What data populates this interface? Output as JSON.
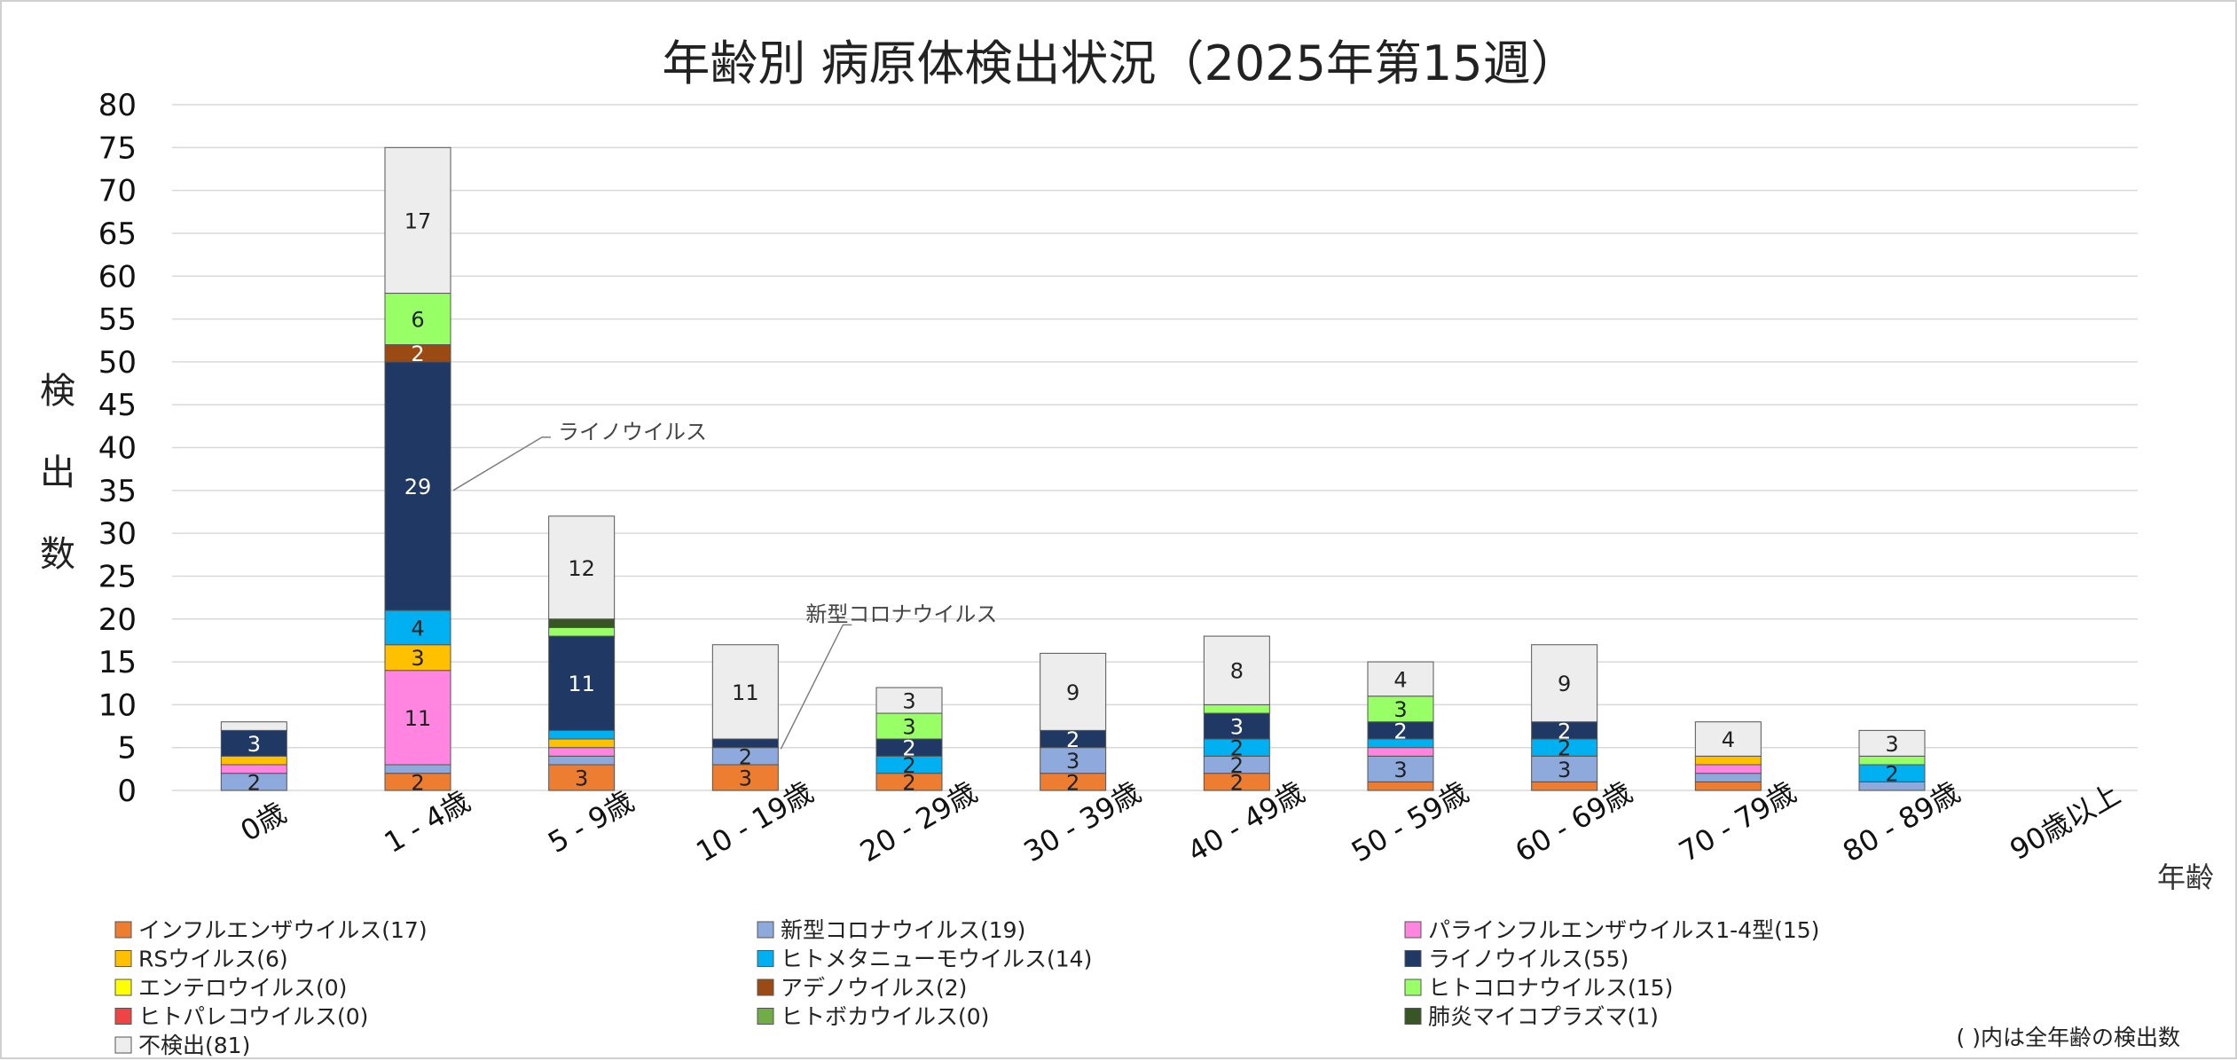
{
  "chart_data": {
    "type": "bar",
    "stacked": true,
    "title": "年齢別 病原体検出状況（2025年第15週）",
    "ylabel": "検出数",
    "xlabel": "年齢",
    "ylim": [
      0,
      80
    ],
    "yticks": [
      0,
      5,
      10,
      15,
      20,
      25,
      30,
      35,
      40,
      45,
      50,
      55,
      60,
      65,
      70,
      75,
      80
    ],
    "grid": true,
    "legend_position": "bottom",
    "categories": [
      "0歳",
      "1 - 4歳",
      "5 - 9歳",
      "10 - 19歳",
      "20 - 29歳",
      "30 - 39歳",
      "40 - 49歳",
      "50 - 59歳",
      "60 - 69歳",
      "70 - 79歳",
      "80 - 89歳",
      "90歳以上"
    ],
    "series": [
      {
        "name": "インフルエンザウイルス(17)",
        "color": "#ED7D31",
        "values": [
          0,
          2,
          3,
          3,
          2,
          2,
          2,
          1,
          1,
          1,
          0,
          0
        ],
        "labels": [
          "",
          "2",
          "3",
          "3",
          "2",
          "2",
          "2",
          "",
          "",
          "",
          "",
          ""
        ]
      },
      {
        "name": "新型コロナウイルス(19)",
        "color": "#8EA9DB",
        "values": [
          2,
          1,
          1,
          2,
          0,
          3,
          2,
          3,
          3,
          1,
          1,
          0
        ],
        "labels": [
          "2",
          "",
          "",
          "2",
          "",
          "3",
          "2",
          "3",
          "3",
          "",
          "",
          ""
        ]
      },
      {
        "name": "パラインフルエンザウイルス1-4型(15)",
        "color": "#FF85E0",
        "values": [
          1,
          11,
          1,
          0,
          0,
          0,
          0,
          1,
          0,
          1,
          0,
          0
        ],
        "labels": [
          "",
          "11",
          "",
          "",
          "",
          "",
          "",
          "",
          "",
          "",
          "",
          ""
        ]
      },
      {
        "name": "RSウイルス(6)",
        "color": "#FFC000",
        "values": [
          1,
          3,
          1,
          0,
          0,
          0,
          0,
          0,
          0,
          1,
          0,
          0
        ],
        "labels": [
          "",
          "3",
          "",
          "",
          "",
          "",
          "",
          "",
          "",
          "",
          "",
          ""
        ]
      },
      {
        "name": "ヒトメタニューモウイルス(14)",
        "color": "#00B0F0",
        "values": [
          0,
          4,
          1,
          0,
          2,
          0,
          2,
          1,
          2,
          0,
          2,
          0
        ],
        "labels": [
          "",
          "4",
          "",
          "",
          "2",
          "",
          "2",
          "",
          "2",
          "",
          "2",
          ""
        ]
      },
      {
        "name": "ライノウイルス(55)",
        "color": "#203864",
        "values": [
          3,
          29,
          11,
          1,
          2,
          2,
          3,
          2,
          2,
          0,
          0,
          0
        ],
        "labels": [
          "3",
          "29",
          "11",
          "",
          "2",
          "2",
          "3",
          "2",
          "2",
          "",
          "",
          ""
        ]
      },
      {
        "name": "エンテロウイルス(0)",
        "color": "#FFFF00",
        "values": [
          0,
          0,
          0,
          0,
          0,
          0,
          0,
          0,
          0,
          0,
          0,
          0
        ],
        "labels": [
          "",
          "",
          "",
          "",
          "",
          "",
          "",
          "",
          "",
          "",
          "",
          ""
        ]
      },
      {
        "name": "アデノウイルス(2)",
        "color": "#9C4A13",
        "values": [
          0,
          2,
          0,
          0,
          0,
          0,
          0,
          0,
          0,
          0,
          0,
          0
        ],
        "labels": [
          "",
          "2",
          "",
          "",
          "",
          "",
          "",
          "",
          "",
          "",
          "",
          ""
        ]
      },
      {
        "name": "ヒトコロナウイルス(15)",
        "color": "#99FF66",
        "values": [
          0,
          6,
          1,
          0,
          3,
          0,
          1,
          3,
          0,
          0,
          1,
          0
        ],
        "labels": [
          "",
          "6",
          "",
          "",
          "3",
          "",
          "",
          "3",
          "",
          "",
          "",
          ""
        ]
      },
      {
        "name": "ヒトパレコウイルス(0)",
        "color": "#EE4444",
        "values": [
          0,
          0,
          0,
          0,
          0,
          0,
          0,
          0,
          0,
          0,
          0,
          0
        ],
        "labels": [
          "",
          "",
          "",
          "",
          "",
          "",
          "",
          "",
          "",
          "",
          "",
          ""
        ]
      },
      {
        "name": "ヒトボカウイルス(0)",
        "color": "#70AD47",
        "values": [
          0,
          0,
          0,
          0,
          0,
          0,
          0,
          0,
          0,
          0,
          0,
          0
        ],
        "labels": [
          "",
          "",
          "",
          "",
          "",
          "",
          "",
          "",
          "",
          "",
          "",
          ""
        ]
      },
      {
        "name": "肺炎マイコプラズマ(1)",
        "color": "#375623",
        "values": [
          0,
          0,
          1,
          0,
          0,
          0,
          0,
          0,
          0,
          0,
          0,
          0
        ],
        "labels": [
          "",
          "",
          "",
          "",
          "",
          "",
          "",
          "",
          "",
          "",
          "",
          ""
        ]
      },
      {
        "name": "不検出(81)",
        "color": "#EDEDED",
        "values": [
          1,
          17,
          12,
          11,
          3,
          9,
          8,
          4,
          9,
          4,
          3,
          0
        ],
        "labels": [
          "",
          "17",
          "12",
          "11",
          "3",
          "9",
          "8",
          "4",
          "9",
          "4",
          "3",
          ""
        ]
      }
    ],
    "annotations": [
      {
        "text": "ライノウイルス",
        "category": "1 - 4歳",
        "value": 35
      },
      {
        "text": "新型コロナウイルス",
        "category": "10 - 19歳",
        "value": 4
      }
    ],
    "note": "( )内は全年齢の検出数"
  }
}
